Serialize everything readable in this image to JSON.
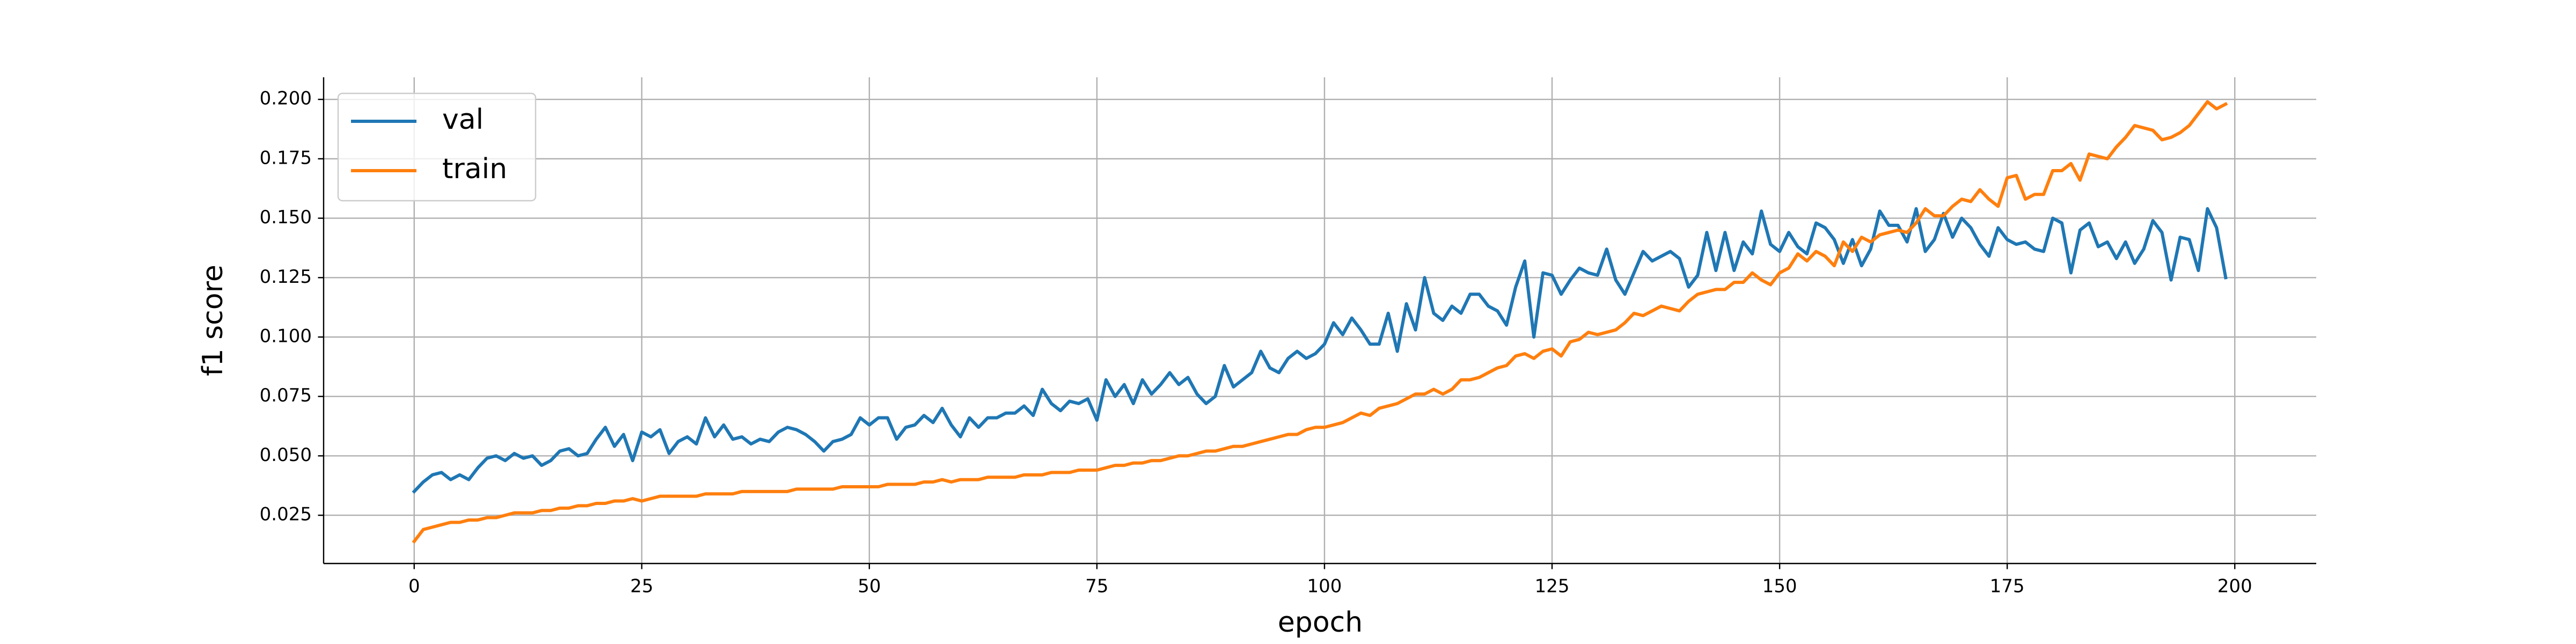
{
  "chart_data": {
    "type": "line",
    "x_label": "epoch",
    "y_label": "f1 score",
    "x": [
      0,
      1,
      2,
      3,
      4,
      5,
      6,
      7,
      8,
      9,
      10,
      11,
      12,
      13,
      14,
      15,
      16,
      17,
      18,
      19,
      20,
      21,
      22,
      23,
      24,
      25,
      26,
      27,
      28,
      29,
      30,
      31,
      32,
      33,
      34,
      35,
      36,
      37,
      38,
      39,
      40,
      41,
      42,
      43,
      44,
      45,
      46,
      47,
      48,
      49,
      50,
      51,
      52,
      53,
      54,
      55,
      56,
      57,
      58,
      59,
      60,
      61,
      62,
      63,
      64,
      65,
      66,
      67,
      68,
      69,
      70,
      71,
      72,
      73,
      74,
      75,
      76,
      77,
      78,
      79,
      80,
      81,
      82,
      83,
      84,
      85,
      86,
      87,
      88,
      89,
      90,
      91,
      92,
      93,
      94,
      95,
      96,
      97,
      98,
      99,
      100,
      101,
      102,
      103,
      104,
      105,
      106,
      107,
      108,
      109,
      110,
      111,
      112,
      113,
      114,
      115,
      116,
      117,
      118,
      119,
      120,
      121,
      122,
      123,
      124,
      125,
      126,
      127,
      128,
      129,
      130,
      131,
      132,
      133,
      134,
      135,
      136,
      137,
      138,
      139,
      140,
      141,
      142,
      143,
      144,
      145,
      146,
      147,
      148,
      149,
      150,
      151,
      152,
      153,
      154,
      155,
      156,
      157,
      158,
      159,
      160,
      161,
      162,
      163,
      164,
      165,
      166,
      167,
      168,
      169,
      170,
      171,
      172,
      173,
      174,
      175,
      176,
      177,
      178,
      179,
      180,
      181,
      182,
      183,
      184,
      185,
      186,
      187,
      188,
      189,
      190,
      191,
      192,
      193,
      194,
      195,
      196,
      197,
      198,
      199
    ],
    "series": [
      {
        "name": "val",
        "color": "#1f77b4",
        "values": [
          0.035,
          0.039,
          0.042,
          0.043,
          0.04,
          0.042,
          0.04,
          0.045,
          0.049,
          0.05,
          0.048,
          0.051,
          0.049,
          0.05,
          0.046,
          0.048,
          0.052,
          0.053,
          0.05,
          0.051,
          0.057,
          0.062,
          0.054,
          0.059,
          0.048,
          0.06,
          0.058,
          0.061,
          0.051,
          0.056,
          0.058,
          0.055,
          0.066,
          0.058,
          0.063,
          0.057,
          0.058,
          0.055,
          0.057,
          0.056,
          0.06,
          0.062,
          0.061,
          0.059,
          0.056,
          0.052,
          0.056,
          0.057,
          0.059,
          0.066,
          0.063,
          0.066,
          0.066,
          0.057,
          0.062,
          0.063,
          0.067,
          0.064,
          0.07,
          0.063,
          0.058,
          0.066,
          0.062,
          0.066,
          0.066,
          0.068,
          0.068,
          0.071,
          0.067,
          0.078,
          0.072,
          0.069,
          0.073,
          0.072,
          0.074,
          0.065,
          0.082,
          0.075,
          0.08,
          0.072,
          0.082,
          0.076,
          0.08,
          0.085,
          0.08,
          0.083,
          0.076,
          0.072,
          0.075,
          0.088,
          0.079,
          0.082,
          0.085,
          0.094,
          0.087,
          0.085,
          0.091,
          0.094,
          0.091,
          0.093,
          0.097,
          0.106,
          0.101,
          0.108,
          0.103,
          0.097,
          0.097,
          0.11,
          0.094,
          0.114,
          0.103,
          0.125,
          0.11,
          0.107,
          0.113,
          0.11,
          0.118,
          0.118,
          0.113,
          0.111,
          0.105,
          0.121,
          0.132,
          0.1,
          0.127,
          0.126,
          0.118,
          0.124,
          0.129,
          0.127,
          0.126,
          0.137,
          0.124,
          0.118,
          0.127,
          0.136,
          0.132,
          0.134,
          0.136,
          0.133,
          0.121,
          0.126,
          0.144,
          0.128,
          0.144,
          0.128,
          0.14,
          0.135,
          0.153,
          0.139,
          0.136,
          0.144,
          0.138,
          0.135,
          0.148,
          0.146,
          0.141,
          0.131,
          0.141,
          0.13,
          0.137,
          0.153,
          0.147,
          0.147,
          0.14,
          0.154,
          0.136,
          0.141,
          0.152,
          0.142,
          0.15,
          0.146,
          0.139,
          0.134,
          0.146,
          0.141,
          0.139,
          0.14,
          0.137,
          0.136,
          0.15,
          0.148,
          0.127,
          0.145,
          0.148,
          0.138,
          0.14,
          0.133,
          0.14,
          0.131,
          0.137,
          0.149,
          0.144,
          0.124,
          0.142,
          0.141,
          0.128,
          0.154,
          0.146,
          0.125
        ]
      },
      {
        "name": "train",
        "color": "#ff7f0e",
        "values": [
          0.014,
          0.019,
          0.02,
          0.021,
          0.022,
          0.022,
          0.023,
          0.023,
          0.024,
          0.024,
          0.025,
          0.026,
          0.026,
          0.026,
          0.027,
          0.027,
          0.028,
          0.028,
          0.029,
          0.029,
          0.03,
          0.03,
          0.031,
          0.031,
          0.032,
          0.031,
          0.032,
          0.033,
          0.033,
          0.033,
          0.033,
          0.033,
          0.034,
          0.034,
          0.034,
          0.034,
          0.035,
          0.035,
          0.035,
          0.035,
          0.035,
          0.035,
          0.036,
          0.036,
          0.036,
          0.036,
          0.036,
          0.037,
          0.037,
          0.037,
          0.037,
          0.037,
          0.038,
          0.038,
          0.038,
          0.038,
          0.039,
          0.039,
          0.04,
          0.039,
          0.04,
          0.04,
          0.04,
          0.041,
          0.041,
          0.041,
          0.041,
          0.042,
          0.042,
          0.042,
          0.043,
          0.043,
          0.043,
          0.044,
          0.044,
          0.044,
          0.045,
          0.046,
          0.046,
          0.047,
          0.047,
          0.048,
          0.048,
          0.049,
          0.05,
          0.05,
          0.051,
          0.052,
          0.052,
          0.053,
          0.054,
          0.054,
          0.055,
          0.056,
          0.057,
          0.058,
          0.059,
          0.059,
          0.061,
          0.062,
          0.062,
          0.063,
          0.064,
          0.066,
          0.068,
          0.067,
          0.07,
          0.071,
          0.072,
          0.074,
          0.076,
          0.076,
          0.078,
          0.076,
          0.078,
          0.082,
          0.082,
          0.083,
          0.085,
          0.087,
          0.088,
          0.092,
          0.093,
          0.091,
          0.094,
          0.095,
          0.092,
          0.098,
          0.099,
          0.102,
          0.101,
          0.102,
          0.103,
          0.106,
          0.11,
          0.109,
          0.111,
          0.113,
          0.112,
          0.111,
          0.115,
          0.118,
          0.119,
          0.12,
          0.12,
          0.123,
          0.123,
          0.127,
          0.124,
          0.122,
          0.127,
          0.129,
          0.135,
          0.132,
          0.136,
          0.134,
          0.13,
          0.14,
          0.136,
          0.142,
          0.14,
          0.143,
          0.144,
          0.145,
          0.144,
          0.148,
          0.154,
          0.151,
          0.151,
          0.155,
          0.158,
          0.157,
          0.162,
          0.158,
          0.155,
          0.167,
          0.168,
          0.158,
          0.16,
          0.16,
          0.17,
          0.17,
          0.173,
          0.166,
          0.177,
          0.176,
          0.175,
          0.18,
          0.184,
          0.189,
          0.188,
          0.187,
          0.183,
          0.184,
          0.186,
          0.189,
          0.194,
          0.199,
          0.196,
          0.198
        ]
      }
    ],
    "xlim": [
      -9.95,
      208.95
    ],
    "ylim": [
      0.0047,
      0.2093
    ],
    "xticks": [
      0,
      25,
      50,
      75,
      100,
      125,
      150,
      175,
      200
    ],
    "yticks": [
      0.025,
      {
        "value": 0.05,
        "label": "0.050"
      },
      0.075,
      {
        "value": 0.1,
        "label": "0.100"
      },
      0.125,
      {
        "value": 0.15,
        "label": "0.150"
      },
      0.175,
      {
        "value": 0.2,
        "label": "0.200"
      }
    ],
    "grid": true,
    "legend": "upper left"
  }
}
